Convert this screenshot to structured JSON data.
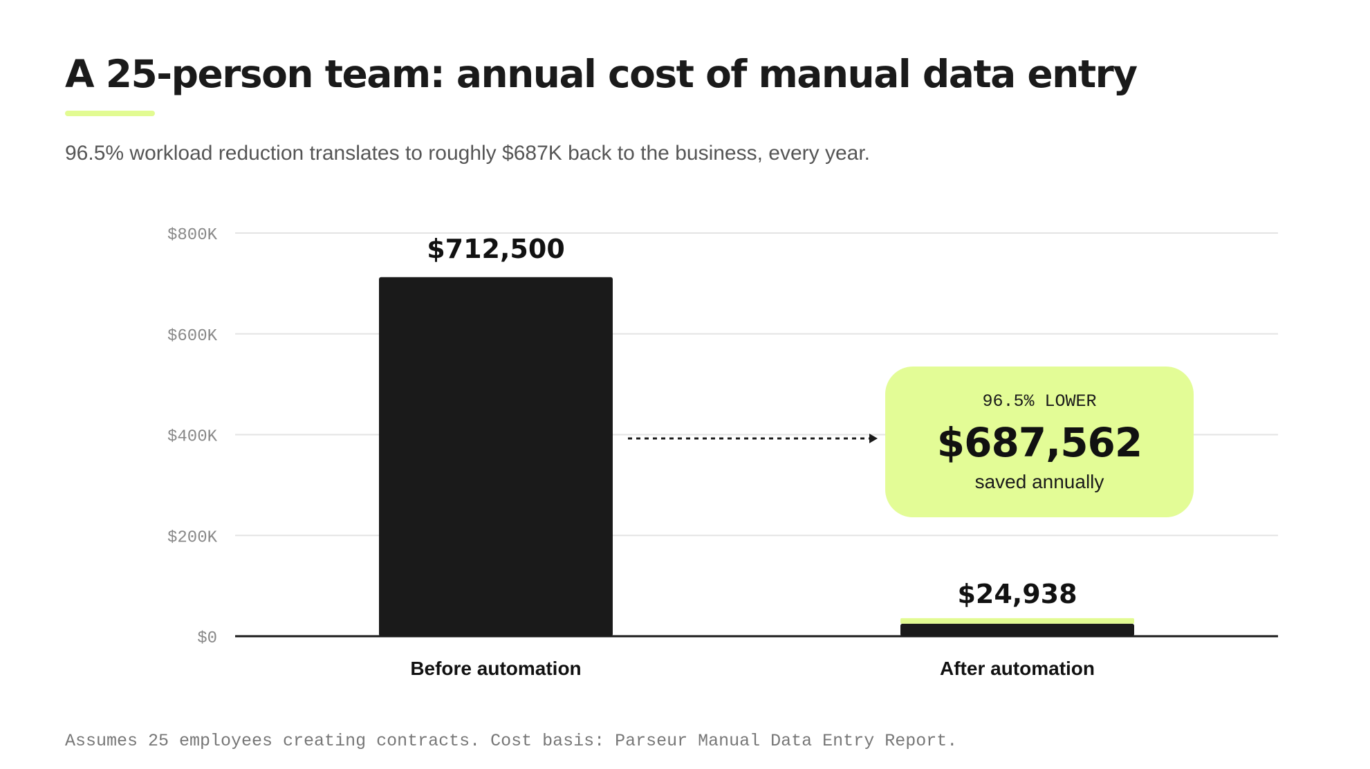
{
  "title": "A 25-person team: annual cost of manual data entry",
  "subtitle": "96.5% workload reduction translates to roughly $687K back to the business, every year.",
  "footnote": "Assumes 25 employees creating contracts. Cost basis: Parseur Manual Data Entry Report.",
  "colors": {
    "bar": "#1a1a1a",
    "accent": "#e2fb92",
    "grid": "#e3e3e3",
    "axis": "#1a1a1a",
    "tick_text": "#888888"
  },
  "callout": {
    "kicker": "96.5% LOWER",
    "value": "$687,562",
    "caption": "saved annually"
  },
  "chart_data": {
    "type": "bar",
    "categories": [
      "Before automation",
      "After automation"
    ],
    "values": [
      712500,
      24938
    ],
    "data_labels": [
      "$712,500",
      "$24,938"
    ],
    "ylim": [
      0,
      800000
    ],
    "y_ticks": [
      0,
      200000,
      400000,
      600000,
      800000
    ],
    "y_tick_labels": [
      "$0",
      "$200K",
      "$400K",
      "$600K",
      "$800K"
    ],
    "grid": true,
    "legend": "none"
  }
}
